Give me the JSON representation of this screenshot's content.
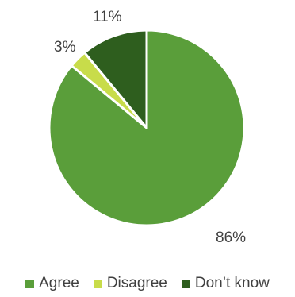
{
  "chart_data": {
    "type": "pie",
    "title": "",
    "start_angle_deg": 0,
    "direction": "clockwise",
    "slices": [
      {
        "label": "Agree",
        "value": 86,
        "value_label": "86%",
        "color": "#5a9e3a"
      },
      {
        "label": "Disagree",
        "value": 3,
        "value_label": "3%",
        "color": "#c8dc4a"
      },
      {
        "label": "Don’t know",
        "value": 11,
        "value_label": "11%",
        "color": "#2e5e1e"
      }
    ],
    "legend": {
      "position": "bottom",
      "items": [
        "Agree",
        "Disagree",
        "Don’t know"
      ]
    }
  }
}
